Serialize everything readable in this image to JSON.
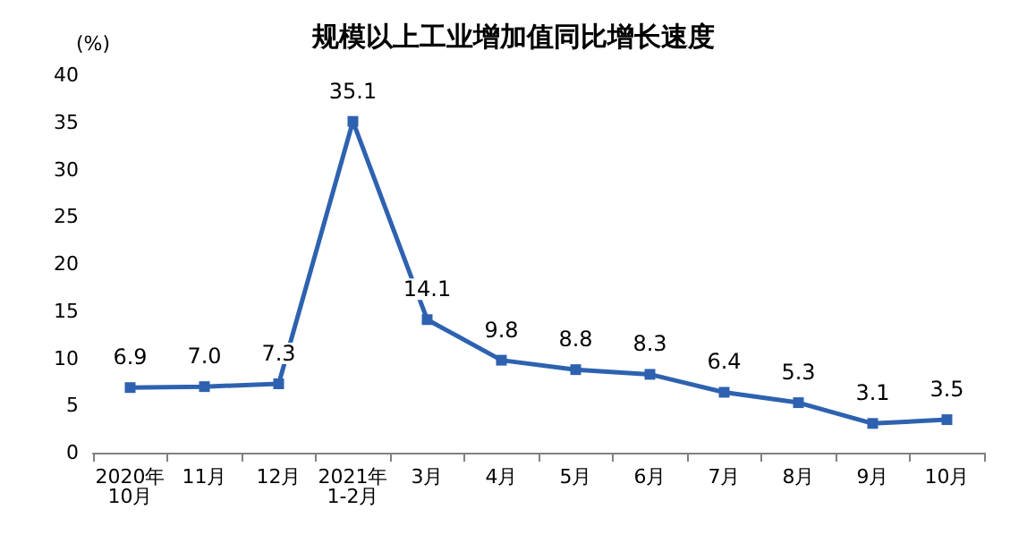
{
  "chart_data": {
    "type": "line",
    "title": "规模以上工业增加值同比增长速度",
    "ylabel": "(%)",
    "categories": [
      "2020年\n10月",
      "11月",
      "12月",
      "2021年\n1-2月",
      "3月",
      "4月",
      "5月",
      "6月",
      "7月",
      "8月",
      "9月",
      "10月"
    ],
    "series": [
      {
        "color": "#2e62b0",
        "values": [
          6.9,
          7.0,
          7.3,
          35.1,
          14.1,
          9.8,
          8.8,
          8.3,
          6.4,
          5.3,
          3.1,
          3.5
        ]
      }
    ],
    "ylim": [
      0,
      40
    ],
    "yticks": [
      0,
      5,
      10,
      15,
      20,
      25,
      30,
      35,
      40
    ],
    "value_labels": [
      "6.9",
      "7.0",
      "7.3",
      "35.1",
      "14.1",
      "9.8",
      "8.8",
      "8.3",
      "6.4",
      "5.3",
      "3.1",
      "3.5"
    ],
    "grid": false,
    "marker": "square",
    "line_style": "solid"
  }
}
